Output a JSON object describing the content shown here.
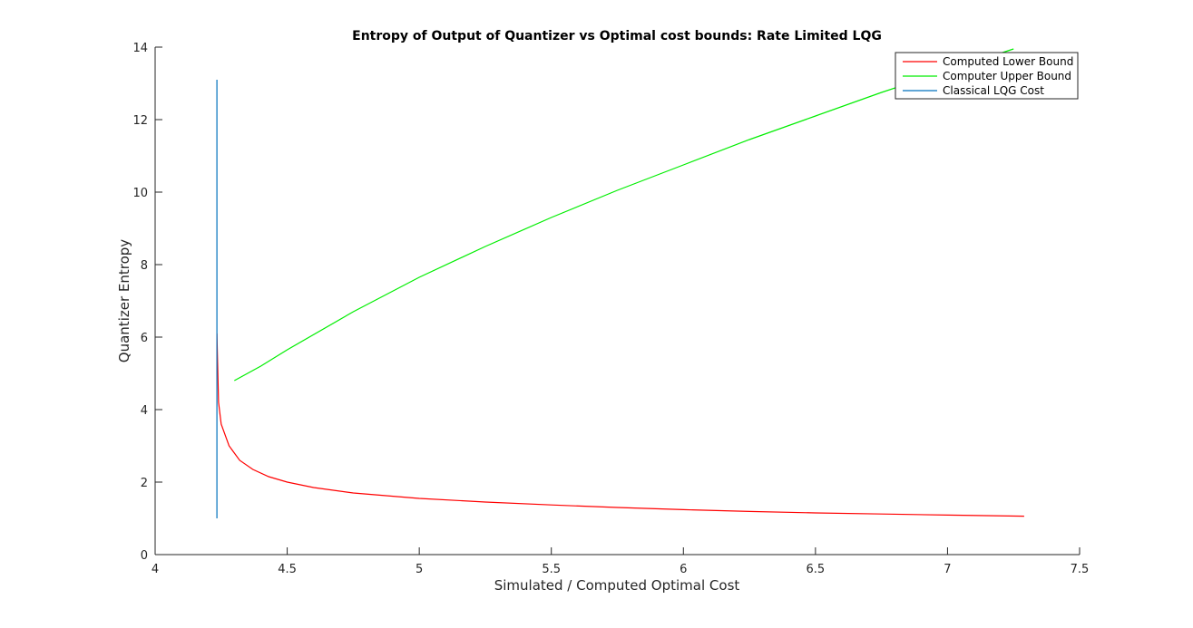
{
  "chart_data": {
    "type": "line",
    "title": "Entropy of Output of Quantizer vs Optimal cost bounds: Rate Limited LQG",
    "xlabel": "Simulated / Computed Optimal Cost",
    "ylabel": "Quantizer Entropy",
    "xlim": [
      4,
      7.5
    ],
    "ylim": [
      0,
      14
    ],
    "xticks": [
      "4",
      "4.5",
      "5",
      "5.5",
      "6",
      "6.5",
      "7",
      "7.5"
    ],
    "xtick_values": [
      4,
      4.5,
      5,
      5.5,
      6,
      6.5,
      7,
      7.5
    ],
    "yticks": [
      "0",
      "2",
      "4",
      "6",
      "8",
      "10",
      "12",
      "14"
    ],
    "ytick_values": [
      0,
      2,
      4,
      6,
      8,
      10,
      12,
      14
    ],
    "grid": false,
    "legend_position": "top-right",
    "series": [
      {
        "name": "Computed Lower Bound",
        "color": "#ff0000",
        "x": [
          4.234,
          4.24,
          4.25,
          4.28,
          4.32,
          4.37,
          4.43,
          4.5,
          4.6,
          4.75,
          5.0,
          5.25,
          5.5,
          5.75,
          6.0,
          6.25,
          6.5,
          6.75,
          7.0,
          7.29
        ],
        "y": [
          6.1,
          4.2,
          3.6,
          3.0,
          2.6,
          2.35,
          2.15,
          2.0,
          1.85,
          1.7,
          1.55,
          1.45,
          1.37,
          1.3,
          1.24,
          1.19,
          1.15,
          1.12,
          1.09,
          1.06
        ]
      },
      {
        "name": "Computer Upper Bound",
        "color": "#00ee00",
        "x": [
          4.3,
          4.4,
          4.5,
          4.75,
          5.0,
          5.25,
          5.5,
          5.75,
          6.0,
          6.25,
          6.5,
          6.75,
          7.0,
          7.25
        ],
        "y": [
          4.8,
          5.2,
          5.65,
          6.7,
          7.65,
          8.5,
          9.3,
          10.05,
          10.75,
          11.45,
          12.1,
          12.75,
          13.35,
          13.95
        ]
      },
      {
        "name": "Classical LQG Cost",
        "color": "#0072bd",
        "x": [
          4.234,
          4.234
        ],
        "y": [
          1.0,
          13.1
        ]
      }
    ]
  }
}
